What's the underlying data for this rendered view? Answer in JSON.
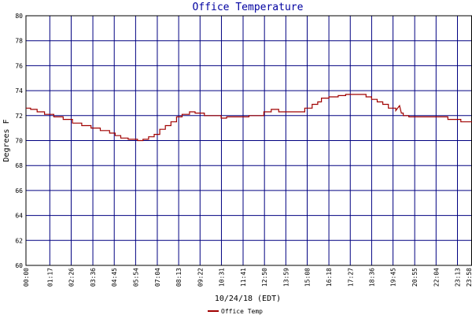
{
  "chart_data": {
    "type": "line",
    "title": "Office Temperature",
    "xlabel": "10/24/18 (EDT)",
    "ylabel": "Degrees F",
    "ylim": [
      60,
      80
    ],
    "y_ticks": [
      60,
      62,
      64,
      66,
      68,
      70,
      72,
      74,
      76,
      78,
      80
    ],
    "x_range_hours": [
      0,
      24
    ],
    "x_tick_labels": [
      "00:00",
      "01:17",
      "02:26",
      "03:36",
      "04:45",
      "05:54",
      "07:04",
      "08:13",
      "09:22",
      "10:31",
      "11:41",
      "12:50",
      "13:59",
      "15:08",
      "16:18",
      "17:27",
      "18:36",
      "19:45",
      "20:55",
      "22:04",
      "23:13",
      "23:58"
    ],
    "x_tick_hours": [
      0,
      1.283,
      2.433,
      3.6,
      4.75,
      5.9,
      7.067,
      8.217,
      9.367,
      10.517,
      11.683,
      12.833,
      13.983,
      15.133,
      16.3,
      17.45,
      18.6,
      19.75,
      20.917,
      22.067,
      23.217,
      23.967
    ],
    "grid": true,
    "legend": "bottom-center",
    "series": [
      {
        "name": "Office Temp",
        "color": "#a00000",
        "x_hours": [
          0,
          0.25,
          0.25,
          0.6,
          0.6,
          1.0,
          1.0,
          1.5,
          1.5,
          2.0,
          2.0,
          2.5,
          2.5,
          3.0,
          3.0,
          3.5,
          3.5,
          4.0,
          4.0,
          4.5,
          4.5,
          4.8,
          4.8,
          5.1,
          5.1,
          5.5,
          5.5,
          6.0,
          6.0,
          6.3,
          6.3,
          6.6,
          6.6,
          6.9,
          6.9,
          7.2,
          7.2,
          7.5,
          7.5,
          7.8,
          7.8,
          8.1,
          8.1,
          8.4,
          8.4,
          8.8,
          8.8,
          9.1,
          9.1,
          9.6,
          9.6,
          10.5,
          10.5,
          10.8,
          10.8,
          12.0,
          12.0,
          12.8,
          12.8,
          13.2,
          13.2,
          13.6,
          13.6,
          15.0,
          15.0,
          15.4,
          15.4,
          15.7,
          15.7,
          15.9,
          15.9,
          16.3,
          16.3,
          16.8,
          16.8,
          17.2,
          17.2,
          18.3,
          18.3,
          18.6,
          18.6,
          18.9,
          18.9,
          19.2,
          19.2,
          19.5,
          19.5,
          19.9,
          19.9,
          20.1,
          20.2,
          20.3,
          20.3,
          20.6,
          20.6,
          22.7,
          22.7,
          23.4,
          23.4,
          24.0
        ],
        "values": [
          72.6,
          72.6,
          72.5,
          72.5,
          72.3,
          72.3,
          72.1,
          72.1,
          71.9,
          71.9,
          71.7,
          71.7,
          71.4,
          71.4,
          71.2,
          71.2,
          71.0,
          71.0,
          70.8,
          70.8,
          70.6,
          70.6,
          70.4,
          70.4,
          70.2,
          70.2,
          70.1,
          70.1,
          70.0,
          70.0,
          70.1,
          70.1,
          70.3,
          70.3,
          70.5,
          70.5,
          70.9,
          70.9,
          71.2,
          71.2,
          71.5,
          71.5,
          71.9,
          71.9,
          72.1,
          72.1,
          72.3,
          72.3,
          72.2,
          72.2,
          72.0,
          72.0,
          71.8,
          71.8,
          71.9,
          71.9,
          72.0,
          72.0,
          72.3,
          72.3,
          72.5,
          72.5,
          72.3,
          72.3,
          72.6,
          72.6,
          72.9,
          72.9,
          73.1,
          73.1,
          73.4,
          73.4,
          73.5,
          73.5,
          73.6,
          73.6,
          73.7,
          73.7,
          73.5,
          73.5,
          73.3,
          73.3,
          73.1,
          73.1,
          72.9,
          72.9,
          72.6,
          72.6,
          72.4,
          72.8,
          72.2,
          72.2,
          72.0,
          72.0,
          71.9,
          71.9,
          71.7,
          71.7,
          71.5,
          71.5
        ]
      }
    ]
  }
}
